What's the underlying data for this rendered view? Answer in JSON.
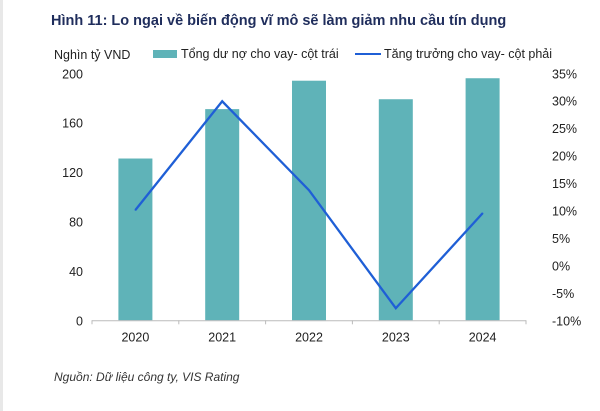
{
  "title": "Hình 11: Lo ngại về biến động vĩ mô sẽ làm giảm nhu cầu tín dụng",
  "source": "Nguồn: Dữ liệu công ty, VIS Rating",
  "chart_data": {
    "type": "bar+line",
    "categories": [
      "2020",
      "2021",
      "2022",
      "2023",
      "2024"
    ],
    "left_axis": {
      "label": "Nghìn tỷ VND",
      "range": [
        0,
        200
      ],
      "ticks": [
        "0",
        "40",
        "80",
        "120",
        "160",
        "200"
      ]
    },
    "right_axis": {
      "range": [
        -10,
        35
      ],
      "ticks": [
        "-10%",
        "-5%",
        "0%",
        "5%",
        "10%",
        "15%",
        "20%",
        "25%",
        "30%",
        "35%"
      ]
    },
    "series": [
      {
        "name": "Tổng dư nợ cho vay- cột trái",
        "type": "bar",
        "axis": "left",
        "color": "#5fb3b8",
        "values": [
          131,
          171,
          194,
          179,
          196
        ]
      },
      {
        "name": "Tăng trưởng cho vay- cột phải",
        "type": "line",
        "axis": "right",
        "color": "#1f5fd6",
        "values": [
          10.1,
          29.9,
          13.7,
          -7.8,
          9.5
        ]
      }
    ],
    "grid": false,
    "legend": "top"
  }
}
